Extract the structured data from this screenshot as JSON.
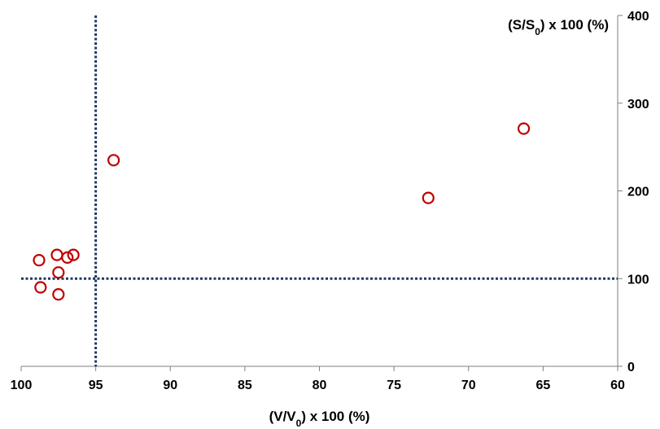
{
  "chart_data": {
    "type": "scatter",
    "xlabel": "(V/V0) x 100 (%)",
    "ylabel": "(S/S0) x 100 (%)",
    "xlim": [
      100,
      60
    ],
    "ylim": [
      0,
      400
    ],
    "x_ticks": [
      "100",
      "95",
      "90",
      "85",
      "80",
      "75",
      "70",
      "65",
      "60"
    ],
    "y_ticks": [
      "0",
      "100",
      "200",
      "300",
      "400"
    ],
    "reference_lines": {
      "vertical_x": 95,
      "horizontal_y": 100
    },
    "series": [
      {
        "points": [
          {
            "x": 98.8,
            "y": 121
          },
          {
            "x": 98.7,
            "y": 90
          },
          {
            "x": 97.6,
            "y": 127
          },
          {
            "x": 97.5,
            "y": 107
          },
          {
            "x": 97.5,
            "y": 82
          },
          {
            "x": 96.9,
            "y": 124
          },
          {
            "x": 96.5,
            "y": 127
          },
          {
            "x": 93.8,
            "y": 235
          },
          {
            "x": 72.7,
            "y": 192
          },
          {
            "x": 66.3,
            "y": 271
          }
        ]
      }
    ],
    "colors": {
      "marker": "#c00000",
      "reference_line": "#1f3864",
      "axis": "#7f7f7f"
    },
    "grid": false,
    "legend": "none"
  }
}
